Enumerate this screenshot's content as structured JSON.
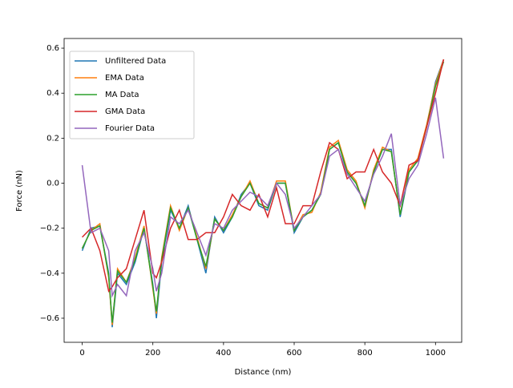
{
  "chart_data": {
    "type": "line",
    "xlabel": "Distance (nm)",
    "ylabel": "Force (nN)",
    "x": [
      0,
      25,
      50,
      75,
      85,
      100,
      125,
      150,
      175,
      200,
      210,
      225,
      250,
      275,
      300,
      325,
      350,
      375,
      400,
      425,
      450,
      475,
      500,
      525,
      550,
      575,
      600,
      625,
      650,
      675,
      700,
      725,
      750,
      775,
      800,
      825,
      850,
      875,
      900,
      925,
      950,
      975,
      1000,
      1023
    ],
    "series": [
      {
        "name": "Unfiltered Data",
        "color": "#1f77b4",
        "values": [
          -0.3,
          -0.2,
          -0.19,
          -0.4,
          -0.64,
          -0.4,
          -0.45,
          -0.35,
          -0.2,
          -0.45,
          -0.6,
          -0.35,
          -0.12,
          -0.2,
          -0.1,
          -0.25,
          -0.4,
          -0.15,
          -0.22,
          -0.15,
          -0.05,
          0.0,
          -0.1,
          -0.12,
          0.0,
          0.0,
          -0.22,
          -0.15,
          -0.12,
          -0.05,
          0.15,
          0.18,
          0.05,
          0.0,
          -0.1,
          0.05,
          0.15,
          0.15,
          -0.15,
          0.05,
          0.1,
          0.25,
          0.45,
          0.55
        ]
      },
      {
        "name": "EMA Data",
        "color": "#ff7f0e",
        "values": [
          -0.29,
          -0.21,
          -0.18,
          -0.42,
          -0.63,
          -0.38,
          -0.44,
          -0.33,
          -0.19,
          -0.47,
          -0.58,
          -0.33,
          -0.1,
          -0.21,
          -0.11,
          -0.24,
          -0.38,
          -0.16,
          -0.21,
          -0.14,
          -0.06,
          0.01,
          -0.09,
          -0.11,
          0.01,
          0.01,
          -0.21,
          -0.14,
          -0.13,
          -0.04,
          0.16,
          0.19,
          0.06,
          0.01,
          -0.11,
          0.06,
          0.16,
          0.14,
          -0.14,
          0.06,
          0.11,
          0.26,
          0.44,
          0.55
        ]
      },
      {
        "name": "MA Data",
        "color": "#2ca02c",
        "values": [
          -0.29,
          -0.21,
          -0.19,
          -0.41,
          -0.62,
          -0.39,
          -0.44,
          -0.34,
          -0.2,
          -0.46,
          -0.57,
          -0.34,
          -0.11,
          -0.2,
          -0.11,
          -0.25,
          -0.37,
          -0.16,
          -0.21,
          -0.15,
          -0.06,
          0.0,
          -0.09,
          -0.11,
          0.0,
          0.0,
          -0.21,
          -0.15,
          -0.12,
          -0.05,
          0.15,
          0.18,
          0.05,
          0.0,
          -0.1,
          0.05,
          0.15,
          0.14,
          -0.14,
          0.05,
          0.1,
          0.25,
          0.43,
          0.54
        ]
      },
      {
        "name": "GMA Data",
        "color": "#d62728",
        "values": [
          -0.24,
          -0.2,
          -0.3,
          -0.48,
          -0.46,
          -0.42,
          -0.38,
          -0.25,
          -0.12,
          -0.4,
          -0.42,
          -0.35,
          -0.2,
          -0.12,
          -0.25,
          -0.25,
          -0.22,
          -0.22,
          -0.15,
          -0.05,
          -0.1,
          -0.12,
          -0.05,
          -0.15,
          -0.02,
          -0.18,
          -0.18,
          -0.1,
          -0.1,
          0.05,
          0.18,
          0.15,
          0.02,
          0.05,
          0.05,
          0.15,
          0.05,
          0.0,
          -0.1,
          0.08,
          0.1,
          0.25,
          0.4,
          0.55
        ]
      },
      {
        "name": "Fourier Data",
        "color": "#9467bd",
        "values": [
          0.08,
          -0.22,
          -0.2,
          -0.3,
          -0.5,
          -0.45,
          -0.5,
          -0.3,
          -0.22,
          -0.38,
          -0.48,
          -0.4,
          -0.15,
          -0.18,
          -0.12,
          -0.22,
          -0.32,
          -0.18,
          -0.2,
          -0.12,
          -0.08,
          -0.04,
          -0.06,
          -0.1,
          0.0,
          -0.05,
          -0.2,
          -0.15,
          -0.1,
          -0.05,
          0.12,
          0.15,
          0.04,
          -0.02,
          -0.08,
          0.04,
          0.12,
          0.22,
          -0.1,
          0.02,
          0.08,
          0.22,
          0.38,
          0.11
        ]
      }
    ],
    "xlim": [
      -51.15,
      1074.15
    ],
    "ylim": [
      -0.707,
      0.643
    ],
    "xticks": [
      0,
      200,
      400,
      600,
      800,
      1000
    ],
    "yticks": [
      {
        "value": -0.6,
        "label": "−0.6"
      },
      {
        "value": -0.4,
        "label": "−0.4"
      },
      {
        "value": -0.2,
        "label": "−0.2"
      },
      {
        "value": 0,
        "label": "0.0"
      },
      0.2,
      0.4,
      0.6
    ],
    "legend": "upper left"
  }
}
